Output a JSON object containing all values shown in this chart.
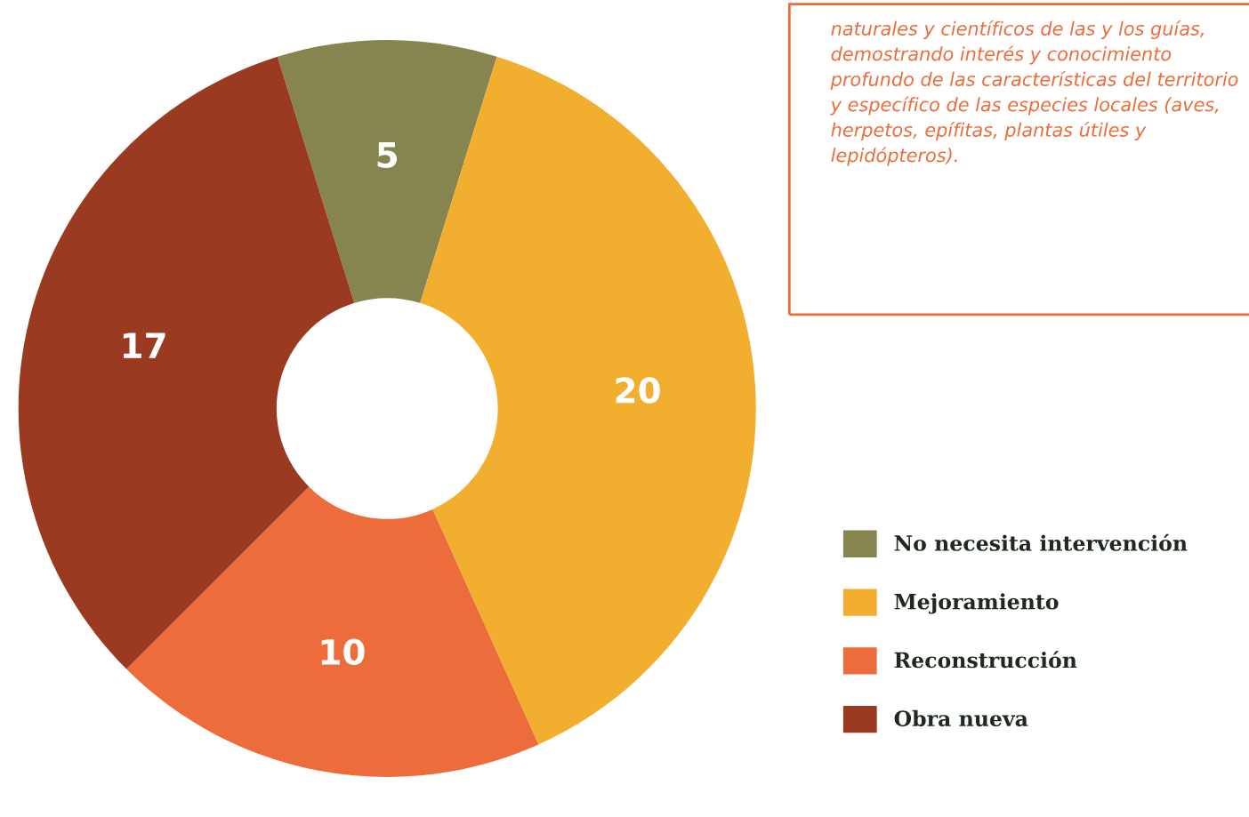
{
  "chart_data": {
    "type": "donut",
    "categories": [
      "No necesita intervención",
      "Mejoramiento",
      "Reconstrucción",
      "Obra nueva"
    ],
    "values": [
      5,
      20,
      10,
      17
    ],
    "colors": [
      "#87854f",
      "#f2ae2f",
      "#ec6d3b",
      "#9a3b21"
    ],
    "data_labels": true,
    "legend": "right",
    "annotations": [
      "naturales y científicos de las y los guías, demostrando interés y conocimiento profundo de las características del territorio y específico de las especies locales (aves, herpetos, epífitas, plantas útiles y lepidópteros)."
    ]
  }
}
